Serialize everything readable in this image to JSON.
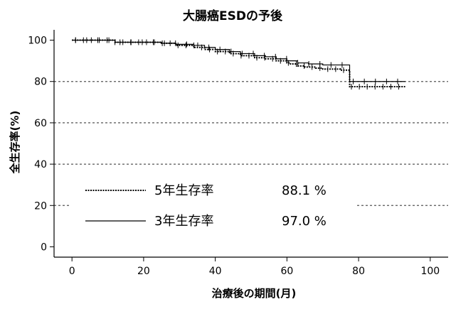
{
  "chart_data": {
    "type": "line",
    "title": "大腸癌ESDの予後",
    "xlabel": "治療後の期間(月)",
    "ylabel": "全生存率(%)",
    "xlim": [
      -5,
      105
    ],
    "ylim": [
      -5,
      105
    ],
    "xticks": [
      0,
      20,
      40,
      60,
      80,
      100
    ],
    "yticks": [
      0,
      20,
      40,
      60,
      80,
      100
    ],
    "grid_y": [
      20,
      40,
      60,
      80
    ],
    "grid_style": "dotted",
    "legend_position": "bottom-left",
    "series": [
      {
        "name": "5年生存率",
        "rate": "88.1 %",
        "style": "dotted",
        "x": [
          0,
          12,
          25,
          29,
          34,
          37,
          40,
          44,
          47,
          51,
          54,
          57,
          60,
          61,
          63,
          65,
          68,
          70,
          73,
          75,
          77,
          77.5,
          93
        ],
        "y": [
          100,
          99,
          98.5,
          97.5,
          96.5,
          95.5,
          94.5,
          93.5,
          92.5,
          91.5,
          91,
          90,
          89,
          88.5,
          87.5,
          87,
          86.5,
          86,
          86,
          85.5,
          85.5,
          77.5,
          77.5
        ]
      },
      {
        "name": "3年生存率",
        "rate": "97.0 %",
        "style": "solid",
        "x": [
          0,
          12,
          25,
          29,
          34,
          37,
          40,
          44,
          47,
          51,
          54,
          57,
          60,
          63,
          66,
          70,
          77,
          77.5,
          93
        ],
        "y": [
          100,
          99,
          98.5,
          98,
          97.5,
          96.5,
          95.5,
          94.5,
          93.5,
          92.5,
          92,
          91,
          90,
          89,
          88.5,
          88,
          88,
          80,
          80
        ]
      }
    ]
  }
}
